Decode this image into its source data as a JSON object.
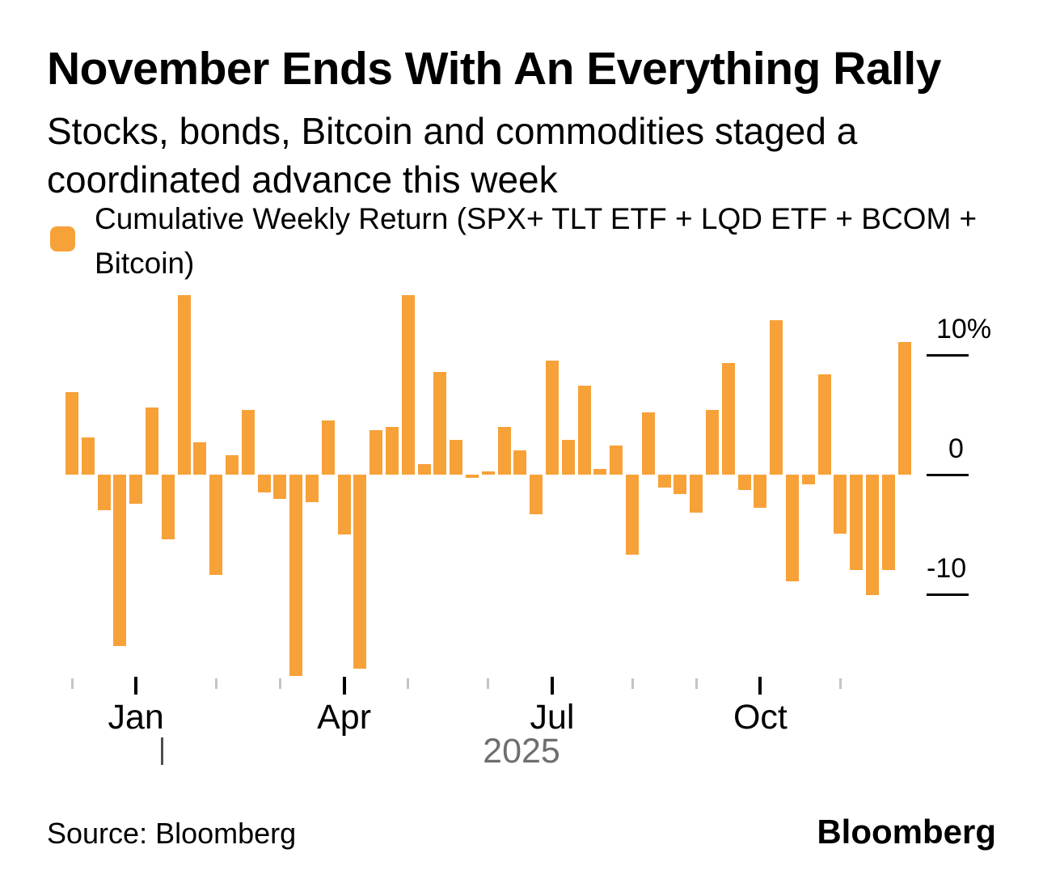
{
  "title": "November Ends With An Everything Rally",
  "subtitle": "Stocks, bonds, Bitcoin and commodities staged a coordinated advance this week",
  "legend": {
    "label": "Cumulative Weekly Return (SPX+ TLT ETF + LQD ETF + BCOM + Bitcoin)",
    "swatch_color": "#F7A139"
  },
  "source": "Source: Bloomberg",
  "brand": "Bloomberg",
  "chart_data": {
    "type": "bar",
    "series_name": "Cumulative Weekly Return (SPX+ TLT ETF + LQD ETF + BCOM + Bitcoin)",
    "x_unit": "week",
    "y_unit": "%",
    "bar_color": "#F7A139",
    "grid": false,
    "legend_position": "top-left",
    "ylim": [
      -17.5,
      15.5
    ],
    "values": [
      6.9,
      3.1,
      -3.0,
      -14.3,
      -2.4,
      5.6,
      -5.4,
      15.0,
      2.7,
      -8.4,
      1.6,
      5.4,
      -1.5,
      -2.0,
      -16.8,
      -2.3,
      4.5,
      -5.0,
      -16.2,
      3.7,
      4.0,
      15.0,
      0.9,
      8.6,
      2.9,
      -0.3,
      0.3,
      4.0,
      2.0,
      -3.3,
      9.5,
      2.9,
      7.4,
      0.5,
      2.4,
      -6.7,
      5.2,
      -1.1,
      -1.6,
      -3.2,
      5.4,
      9.3,
      -1.3,
      -2.8,
      12.9,
      -8.9,
      -0.8,
      8.4,
      -4.9,
      -8.0,
      -10.1,
      -8.0,
      11.1
    ],
    "yticks": [
      {
        "value": 10,
        "label": "10%"
      },
      {
        "value": 0,
        "label": "0"
      },
      {
        "value": -10,
        "label": "-10"
      }
    ],
    "xticks": [
      {
        "bar_index": 0,
        "label": "",
        "major": false
      },
      {
        "bar_index": 4,
        "label": "Jan",
        "major": true
      },
      {
        "bar_index": 9,
        "label": "",
        "major": false
      },
      {
        "bar_index": 13,
        "label": "",
        "major": false
      },
      {
        "bar_index": 17,
        "label": "Apr",
        "major": true
      },
      {
        "bar_index": 21,
        "label": "",
        "major": false
      },
      {
        "bar_index": 26,
        "label": "",
        "major": false
      },
      {
        "bar_index": 30,
        "label": "Jul",
        "major": true
      },
      {
        "bar_index": 35,
        "label": "",
        "major": false
      },
      {
        "bar_index": 39,
        "label": "",
        "major": false
      },
      {
        "bar_index": 43,
        "label": "Oct",
        "major": true
      },
      {
        "bar_index": 48,
        "label": "",
        "major": false
      }
    ],
    "year_label": "2025"
  }
}
